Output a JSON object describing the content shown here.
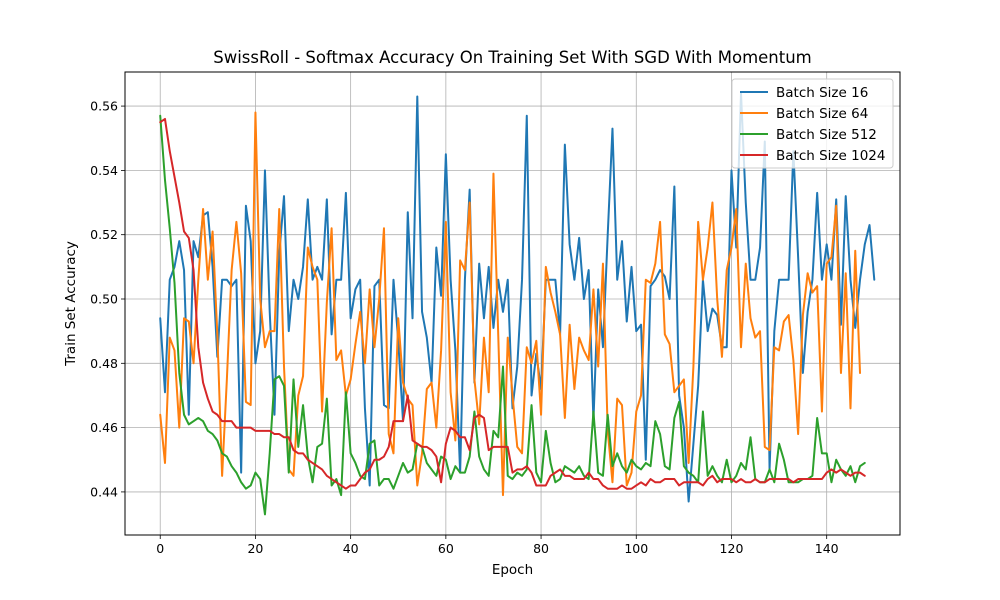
{
  "chart_data": {
    "type": "line",
    "title": "SwissRoll - Softmax Accuracy On Training Set With SGD With Momentum",
    "xlabel": "Epoch",
    "ylabel": "Train Set Accuracy",
    "xlim": [
      -7.4,
      155.4
    ],
    "ylim": [
      0.4266,
      0.5706
    ],
    "xticks": [
      0,
      20,
      40,
      60,
      80,
      100,
      120,
      140
    ],
    "yticks": [
      0.44,
      0.46,
      0.48,
      0.5,
      0.52,
      0.54,
      0.56
    ],
    "ytick_labels": [
      "0.44",
      "0.46",
      "0.48",
      "0.50",
      "0.52",
      "0.54",
      "0.56"
    ],
    "grid": true,
    "legend_position": "top-right",
    "series": [
      {
        "name": "Batch Size 16",
        "color": "#1f77b4",
        "values": [
          0.494,
          0.471,
          0.506,
          0.51,
          0.518,
          0.509,
          0.464,
          0.518,
          0.513,
          0.526,
          0.527,
          0.51,
          0.482,
          0.506,
          0.506,
          0.504,
          0.506,
          0.446,
          0.529,
          0.518,
          0.48,
          0.49,
          0.54,
          0.496,
          0.464,
          0.514,
          0.532,
          0.49,
          0.506,
          0.5,
          0.51,
          0.531,
          0.506,
          0.51,
          0.506,
          0.531,
          0.489,
          0.506,
          0.506,
          0.533,
          0.494,
          0.503,
          0.506,
          0.466,
          0.442,
          0.504,
          0.506,
          0.467,
          0.466,
          0.506,
          0.487,
          0.462,
          0.527,
          0.494,
          0.563,
          0.496,
          0.488,
          0.474,
          0.516,
          0.501,
          0.545,
          0.506,
          0.484,
          0.446,
          0.506,
          0.534,
          0.474,
          0.511,
          0.494,
          0.51,
          0.491,
          0.506,
          0.496,
          0.506,
          0.466,
          0.479,
          0.506,
          0.557,
          0.47,
          0.483,
          0.472,
          0.506,
          0.506,
          0.506,
          0.489,
          0.548,
          0.517,
          0.506,
          0.519,
          0.5,
          0.509,
          0.462,
          0.503,
          0.485,
          0.52,
          0.553,
          0.506,
          0.518,
          0.493,
          0.51,
          0.49,
          0.492,
          0.45,
          0.504,
          0.506,
          0.509,
          0.507,
          0.5,
          0.535,
          0.47,
          0.46,
          0.437,
          0.455,
          0.473,
          0.506,
          0.49,
          0.497,
          0.495,
          0.485,
          0.485,
          0.54,
          0.516,
          0.564,
          0.53,
          0.506,
          0.506,
          0.516,
          0.549,
          0.447,
          0.49,
          0.506,
          0.506,
          0.506,
          0.546,
          0.513,
          0.477,
          0.496,
          0.506,
          0.533,
          0.506,
          0.517,
          0.506,
          0.531,
          0.492,
          0.532,
          0.506,
          0.491,
          0.506,
          0.517,
          0.523,
          0.506
        ]
      },
      {
        "name": "Batch Size 64",
        "color": "#ff7f0e",
        "values": [
          0.464,
          0.449,
          0.488,
          0.484,
          0.46,
          0.494,
          0.493,
          0.48,
          0.506,
          0.528,
          0.506,
          0.521,
          0.489,
          0.445,
          0.475,
          0.509,
          0.524,
          0.508,
          0.468,
          0.467,
          0.558,
          0.5,
          0.485,
          0.49,
          0.49,
          0.528,
          0.479,
          0.447,
          0.445,
          0.47,
          0.476,
          0.516,
          0.51,
          0.506,
          0.465,
          0.499,
          0.522,
          0.481,
          0.484,
          0.47,
          0.475,
          0.486,
          0.496,
          0.48,
          0.503,
          0.485,
          0.5,
          0.522,
          0.458,
          0.452,
          0.494,
          0.474,
          0.469,
          0.467,
          0.442,
          0.452,
          0.472,
          0.474,
          0.46,
          0.484,
          0.524,
          0.471,
          0.456,
          0.512,
          0.509,
          0.53,
          0.475,
          0.461,
          0.488,
          0.471,
          0.539,
          0.489,
          0.439,
          0.488,
          0.47,
          0.454,
          0.452,
          0.485,
          0.48,
          0.487,
          0.464,
          0.51,
          0.502,
          0.496,
          0.489,
          0.463,
          0.492,
          0.472,
          0.488,
          0.484,
          0.481,
          0.503,
          0.479,
          0.511,
          0.459,
          0.443,
          0.469,
          0.467,
          0.442,
          0.446,
          0.465,
          0.47,
          0.506,
          0.505,
          0.511,
          0.524,
          0.489,
          0.486,
          0.471,
          0.473,
          0.475,
          0.449,
          0.479,
          0.524,
          0.506,
          0.516,
          0.53,
          0.5,
          0.482,
          0.509,
          0.516,
          0.528,
          0.485,
          0.511,
          0.494,
          0.488,
          0.49,
          0.454,
          0.453,
          0.485,
          0.484,
          0.493,
          0.495,
          0.481,
          0.458,
          0.495,
          0.508,
          0.502,
          0.504,
          0.465,
          0.511,
          0.513,
          0.529,
          0.477,
          0.508,
          0.466,
          0.515,
          0.477
        ]
      },
      {
        "name": "Batch Size 512",
        "color": "#2ca02c",
        "values": [
          0.557,
          0.537,
          0.522,
          0.505,
          0.477,
          0.464,
          0.461,
          0.462,
          0.463,
          0.462,
          0.459,
          0.458,
          0.456,
          0.452,
          0.451,
          0.448,
          0.446,
          0.443,
          0.441,
          0.442,
          0.446,
          0.444,
          0.433,
          0.452,
          0.475,
          0.476,
          0.473,
          0.446,
          0.475,
          0.454,
          0.467,
          0.451,
          0.443,
          0.454,
          0.455,
          0.469,
          0.442,
          0.444,
          0.439,
          0.471,
          0.452,
          0.449,
          0.445,
          0.444,
          0.455,
          0.456,
          0.442,
          0.444,
          0.444,
          0.441,
          0.445,
          0.449,
          0.446,
          0.447,
          0.455,
          0.454,
          0.449,
          0.447,
          0.445,
          0.451,
          0.45,
          0.444,
          0.448,
          0.446,
          0.446,
          0.451,
          0.465,
          0.451,
          0.447,
          0.445,
          0.459,
          0.457,
          0.479,
          0.445,
          0.444,
          0.446,
          0.445,
          0.447,
          0.467,
          0.446,
          0.443,
          0.459,
          0.449,
          0.443,
          0.444,
          0.448,
          0.447,
          0.446,
          0.448,
          0.445,
          0.444,
          0.465,
          0.446,
          0.445,
          0.464,
          0.448,
          0.452,
          0.448,
          0.446,
          0.45,
          0.448,
          0.447,
          0.449,
          0.448,
          0.462,
          0.458,
          0.448,
          0.447,
          0.463,
          0.468,
          0.448,
          0.446,
          0.445,
          0.443,
          0.465,
          0.445,
          0.448,
          0.445,
          0.443,
          0.45,
          0.443,
          0.445,
          0.449,
          0.447,
          0.457,
          0.444,
          0.443,
          0.443,
          0.447,
          0.443,
          0.455,
          0.45,
          0.443,
          0.443,
          0.443,
          0.444,
          0.444,
          0.445,
          0.463,
          0.452,
          0.452,
          0.443,
          0.45,
          0.447,
          0.445,
          0.448,
          0.443,
          0.448,
          0.449
        ]
      },
      {
        "name": "Batch Size 1024",
        "color": "#d62728",
        "values": [
          0.555,
          0.556,
          0.546,
          0.538,
          0.53,
          0.521,
          0.519,
          0.509,
          0.485,
          0.474,
          0.469,
          0.465,
          0.464,
          0.462,
          0.462,
          0.462,
          0.46,
          0.46,
          0.46,
          0.46,
          0.459,
          0.459,
          0.459,
          0.459,
          0.458,
          0.458,
          0.457,
          0.457,
          0.453,
          0.452,
          0.452,
          0.45,
          0.449,
          0.448,
          0.447,
          0.445,
          0.444,
          0.443,
          0.442,
          0.441,
          0.442,
          0.442,
          0.444,
          0.446,
          0.447,
          0.45,
          0.45,
          0.451,
          0.454,
          0.462,
          0.462,
          0.462,
          0.47,
          0.456,
          0.455,
          0.454,
          0.454,
          0.453,
          0.451,
          0.443,
          0.455,
          0.46,
          0.459,
          0.457,
          0.457,
          0.453,
          0.463,
          0.464,
          0.463,
          0.453,
          0.454,
          0.454,
          0.454,
          0.454,
          0.446,
          0.447,
          0.447,
          0.448,
          0.446,
          0.442,
          0.442,
          0.442,
          0.445,
          0.446,
          0.447,
          0.445,
          0.445,
          0.444,
          0.444,
          0.444,
          0.446,
          0.444,
          0.444,
          0.442,
          0.441,
          0.441,
          0.441,
          0.442,
          0.441,
          0.441,
          0.442,
          0.443,
          0.442,
          0.444,
          0.443,
          0.443,
          0.444,
          0.444,
          0.444,
          0.442,
          0.443,
          0.443,
          0.443,
          0.443,
          0.442,
          0.444,
          0.445,
          0.443,
          0.444,
          0.444,
          0.444,
          0.443,
          0.444,
          0.443,
          0.443,
          0.444,
          0.443,
          0.443,
          0.444,
          0.444,
          0.444,
          0.444,
          0.444,
          0.443,
          0.444,
          0.444,
          0.444,
          0.444,
          0.444,
          0.444,
          0.446,
          0.447,
          0.446,
          0.447,
          0.446,
          0.445,
          0.446,
          0.446,
          0.445
        ]
      }
    ]
  }
}
